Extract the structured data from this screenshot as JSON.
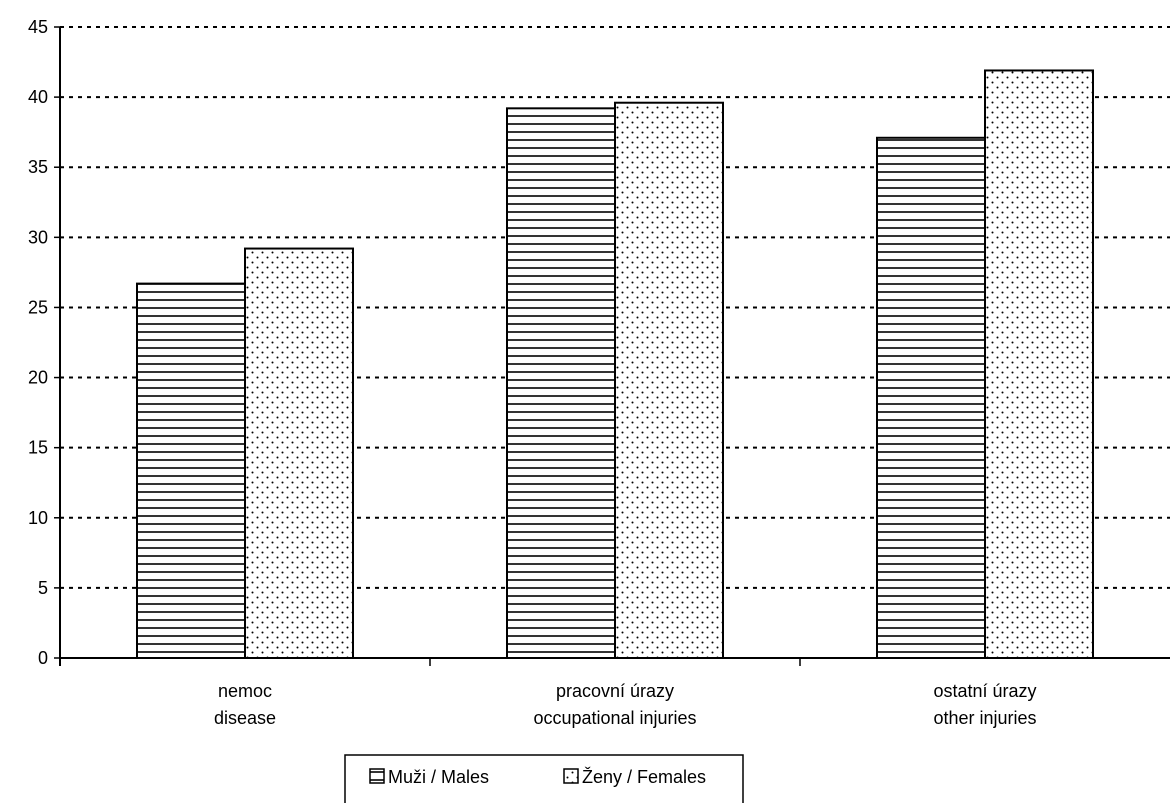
{
  "chart_data": {
    "type": "bar",
    "title": "",
    "xlabel": "",
    "ylabel": "",
    "categories": [
      [
        "nemoc",
        "disease"
      ],
      [
        "pracovní úrazy",
        "occupational injuries"
      ],
      [
        "ostatní úrazy",
        "other injuries"
      ]
    ],
    "series": [
      {
        "name": "Muži / Males",
        "values": [
          26.7,
          39.2,
          37.1
        ],
        "pattern": "horizontal-lines"
      },
      {
        "name": "Ženy / Females",
        "values": [
          29.2,
          39.6,
          41.9
        ],
        "pattern": "dots"
      }
    ],
    "ylim": [
      0,
      45
    ],
    "yticks": [
      0,
      5,
      10,
      15,
      20,
      25,
      30,
      35,
      40,
      45
    ],
    "grid": "horizontal-dashed",
    "legend": "bottom-center",
    "colors": {
      "bar_fill": "#ffffff",
      "stroke": "#000000",
      "grid": "#000000"
    }
  }
}
